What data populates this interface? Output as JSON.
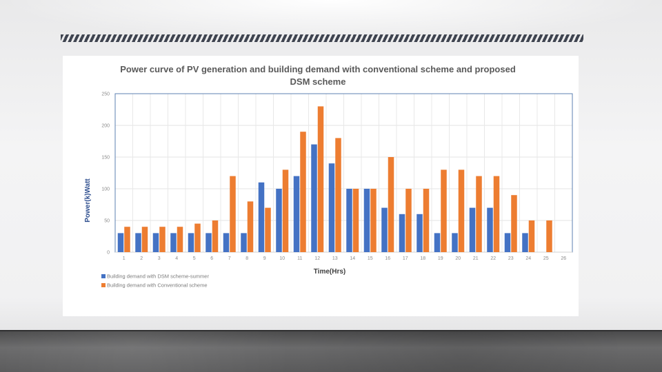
{
  "slide": {
    "colors": {
      "hatch": "#3f4450",
      "floor": "#5a5a5b"
    }
  },
  "chart_data": {
    "type": "bar",
    "title": "Power curve of PV generation and building demand with conventional scheme and proposed DSM scheme",
    "xlabel": "Time(Hrs)",
    "ylabel": "Power(k)Watt",
    "ylim": [
      0,
      250
    ],
    "yticks": [
      0,
      50,
      100,
      150,
      200,
      250
    ],
    "grid": true,
    "legend_position": "bottom-left",
    "categories": [
      "1",
      "2",
      "3",
      "4",
      "5",
      "6",
      "7",
      "8",
      "9",
      "10",
      "11",
      "12",
      "13",
      "14",
      "15",
      "16",
      "17",
      "18",
      "19",
      "20",
      "21",
      "22",
      "23",
      "24",
      "25",
      "26"
    ],
    "series": [
      {
        "name": "Building demand with DSM scheme-summer",
        "color": "#4472c4",
        "values": [
          30,
          30,
          30,
          30,
          30,
          30,
          30,
          30,
          110,
          100,
          120,
          170,
          140,
          100,
          100,
          70,
          60,
          60,
          30,
          30,
          70,
          70,
          30,
          30,
          0,
          0
        ]
      },
      {
        "name": "Building demand with Conventional scheme",
        "color": "#ed7d31",
        "values": [
          40,
          40,
          40,
          40,
          45,
          50,
          120,
          80,
          70,
          130,
          190,
          230,
          180,
          100,
          100,
          150,
          100,
          100,
          130,
          130,
          120,
          120,
          90,
          50,
          50,
          0
        ]
      }
    ]
  }
}
